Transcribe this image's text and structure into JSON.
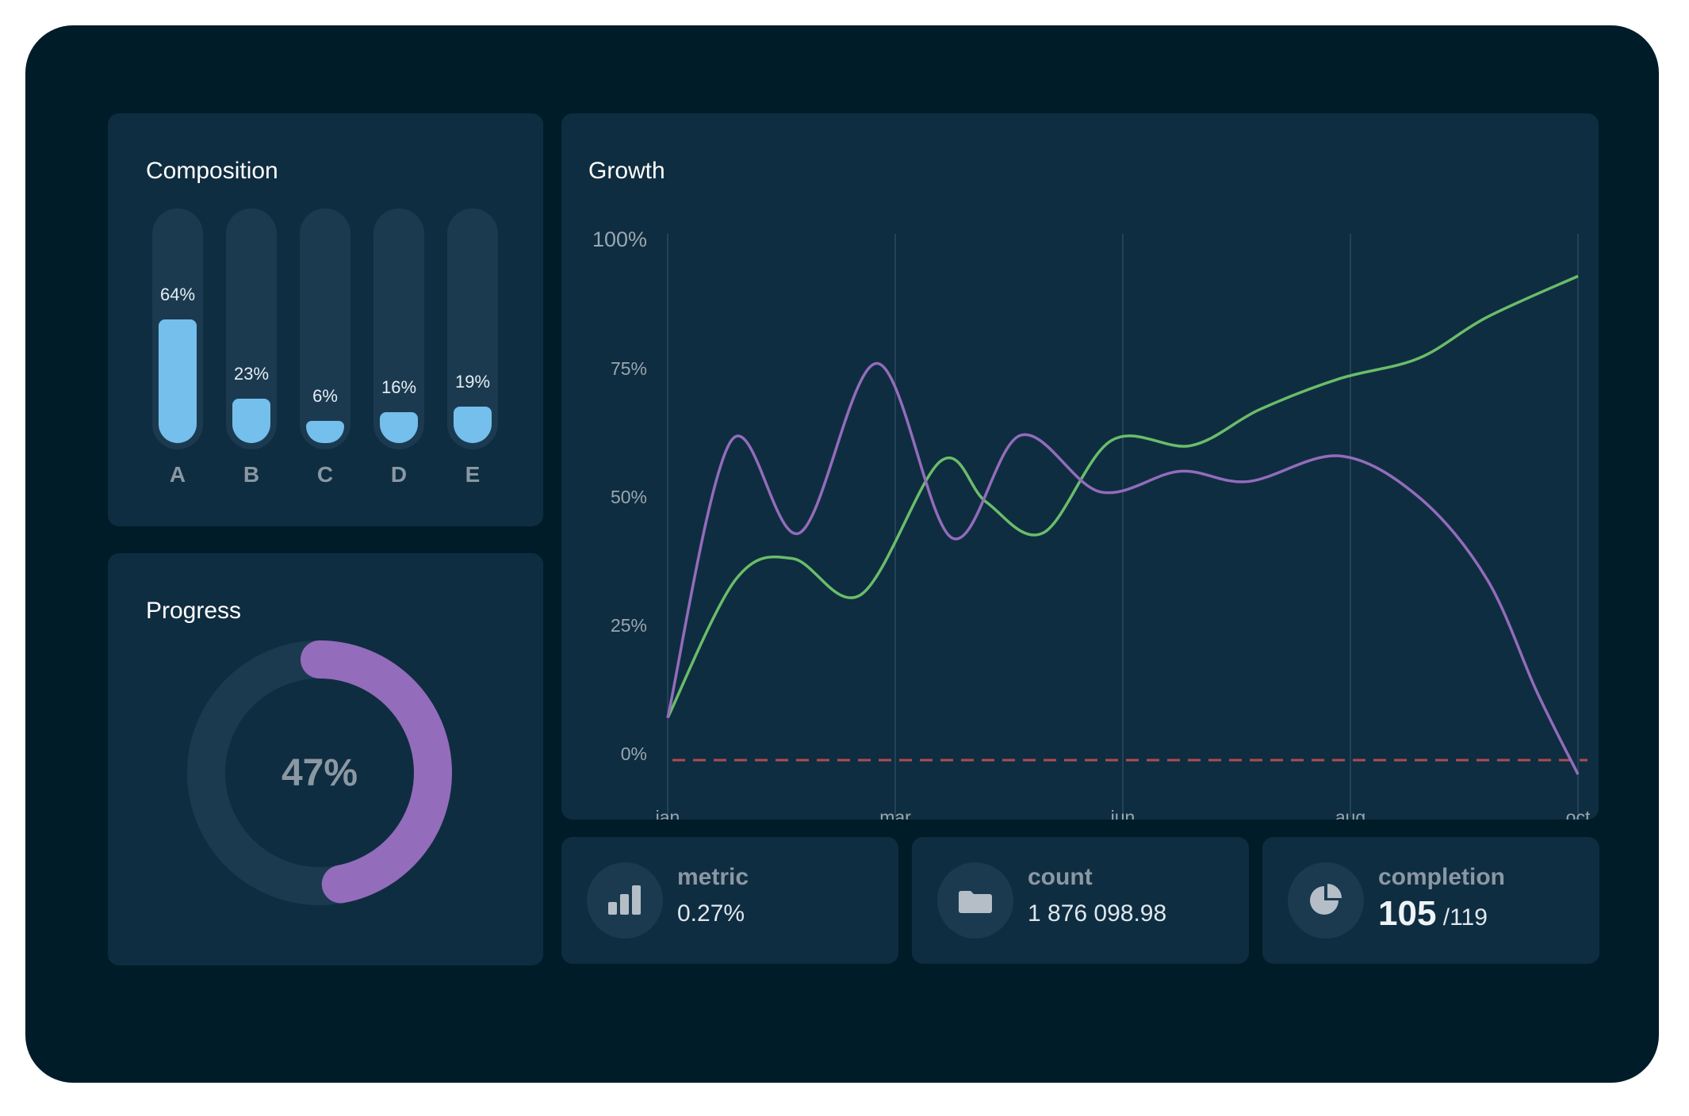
{
  "colors": {
    "frame_bg": "#011c29",
    "card_bg": "#0f2d40",
    "track_bg": "#1b3a50",
    "bar_fill": "#74bfec",
    "donut_fill": "#936cbb",
    "series_green": "#6abd6a",
    "series_purple": "#936cbb",
    "baseline_red": "#b04a52"
  },
  "composition": {
    "title": "Composition",
    "chart_data": {
      "type": "bar",
      "categories": [
        "A",
        "B",
        "C",
        "D",
        "E"
      ],
      "values": [
        64,
        23,
        6,
        16,
        19
      ],
      "value_labels": [
        "64%",
        "23%",
        "6%",
        "16%",
        "19%"
      ],
      "ylim": [
        0,
        100
      ]
    }
  },
  "progress": {
    "title": "Progress",
    "value": 47,
    "label": "47%"
  },
  "growth": {
    "title": "Growth",
    "chart_data": {
      "type": "line",
      "x_labels": [
        "jan",
        "mar",
        "jun",
        "aug",
        "oct"
      ],
      "y_ticks": [
        "0%",
        "25%",
        "50%",
        "75%",
        "100%"
      ],
      "ylim": [
        0,
        100
      ],
      "grid": "vertical",
      "baseline": 0,
      "series": [
        {
          "color_key": "series_green",
          "x": [
            0,
            0.3,
            0.55,
            0.85,
            1.2,
            1.4,
            1.65,
            1.95,
            2.3,
            2.6,
            2.95,
            3.3,
            3.6,
            4.0
          ],
          "values": [
            7,
            34,
            38,
            31,
            57,
            49,
            43,
            61,
            60,
            67,
            73,
            77,
            85,
            93
          ]
        },
        {
          "color_key": "series_purple",
          "x": [
            0,
            0.28,
            0.58,
            0.92,
            1.25,
            1.55,
            1.9,
            2.25,
            2.55,
            2.95,
            3.3,
            3.6,
            3.82,
            4.0
          ],
          "values": [
            7,
            61,
            43,
            76,
            42,
            62,
            51,
            55,
            53,
            58,
            50,
            34,
            12,
            -4
          ]
        }
      ]
    }
  },
  "stats": {
    "metric": {
      "label": "metric",
      "value": "0.27%",
      "icon": "bar-chart-icon"
    },
    "count": {
      "label": "count",
      "value": "1 876 098.98",
      "icon": "folder-icon"
    },
    "completion": {
      "label": "completion",
      "value": "105",
      "total": "/119",
      "icon": "pie-chart-icon"
    }
  }
}
